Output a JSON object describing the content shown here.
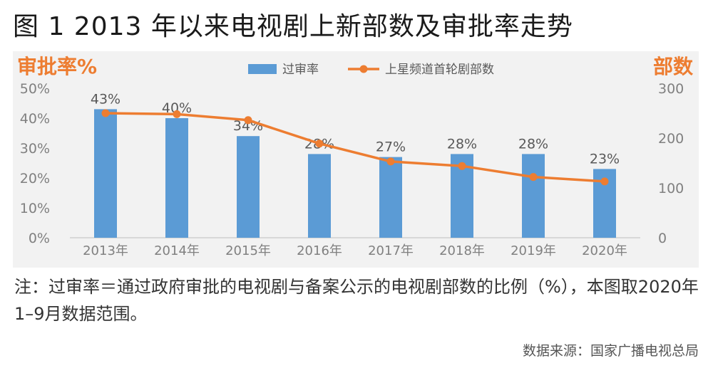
{
  "figure": {
    "title": "图 1 2013 年以来电视剧上新部数及审批率走势",
    "note": "注：过审率＝通过政府审批的电视剧与备案公示的电视剧部数的比例（%），本图取2020年1–9月数据范围。",
    "source": "数据来源：国家广播电视总局"
  },
  "colors": {
    "bar": "#5b9bd5",
    "line": "#ed7d31",
    "axis_title": "#ed7d31",
    "tick": "#808080",
    "panel": "#f2f2f2"
  },
  "chart_data": {
    "type": "bar+line",
    "categories": [
      "2013年",
      "2014年",
      "2015年",
      "2016年",
      "2017年",
      "2018年",
      "2019年",
      "2020年"
    ],
    "series": [
      {
        "name": "过审率",
        "type": "bar",
        "axis": "left",
        "values": [
          43,
          40,
          34,
          28,
          27,
          28,
          28,
          23
        ],
        "labels": [
          "43%",
          "40%",
          "34%",
          "28%",
          "27%",
          "28%",
          "28%",
          "23%"
        ]
      },
      {
        "name": "上星频道首轮剧部数",
        "type": "line",
        "axis": "right",
        "values": [
          250,
          248,
          236,
          189,
          153,
          144,
          122,
          113
        ]
      }
    ],
    "y_left": {
      "label": "审批率%",
      "ticks": [
        "0%",
        "10%",
        "20%",
        "30%",
        "40%",
        "50%"
      ],
      "range": [
        0,
        50
      ]
    },
    "y_right": {
      "label": "部数",
      "ticks": [
        "0",
        "100",
        "200",
        "300"
      ],
      "range": [
        0,
        300
      ]
    },
    "legend_position": "top-center",
    "grid": false
  }
}
